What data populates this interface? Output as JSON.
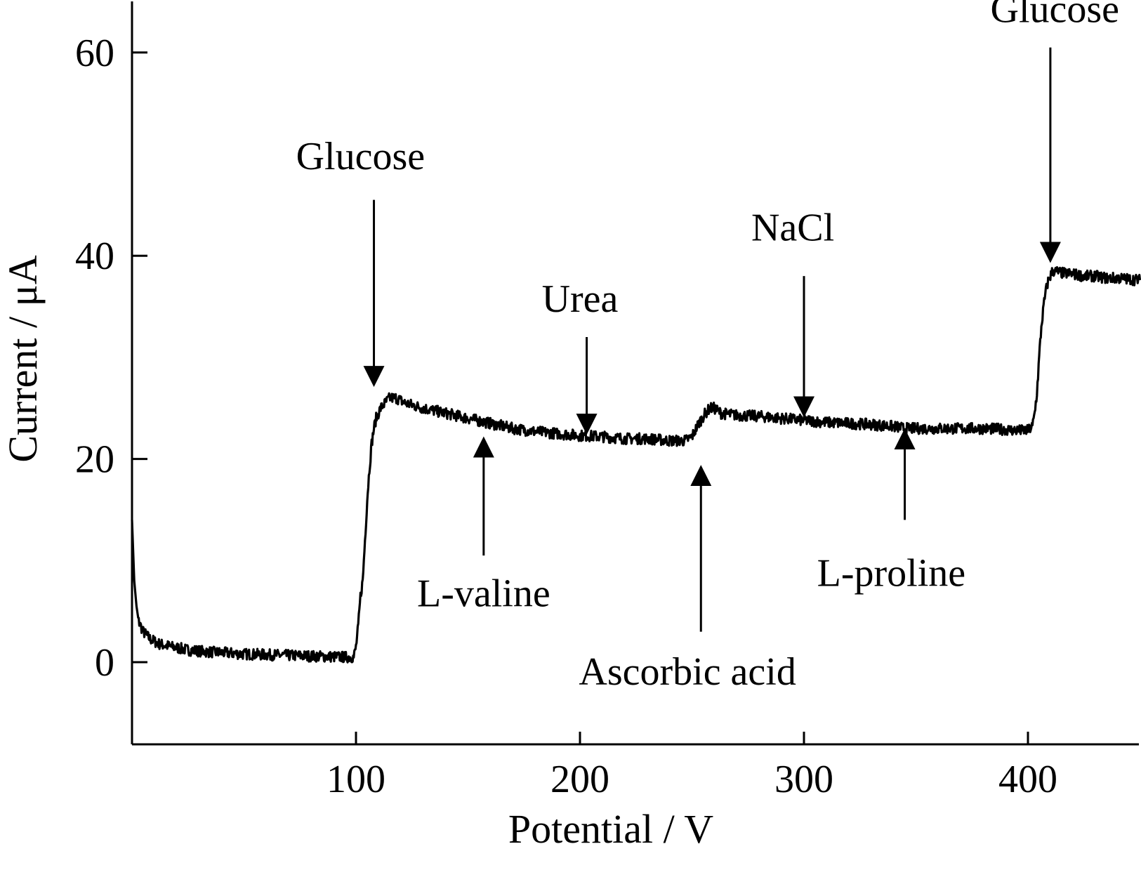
{
  "chart_data": {
    "type": "line",
    "title": "",
    "xlabel": "Potential / V",
    "ylabel": "Current / μA",
    "xlim": [
      0,
      450
    ],
    "ylim": [
      -8,
      65
    ],
    "xticks": [
      100,
      200,
      300,
      400
    ],
    "yticks": [
      0,
      20,
      40,
      60
    ],
    "xtick_labels": [
      "100",
      "200",
      "300",
      "400"
    ],
    "ytick_labels": [
      "0",
      "20",
      "40",
      "60"
    ],
    "grid": false,
    "legend": "none",
    "line_color": "#000000",
    "series": [
      {
        "x": [
          0,
          1,
          2,
          3,
          5,
          8,
          12,
          18,
          25,
          35,
          50,
          65,
          80,
          95,
          99,
          100,
          101,
          102,
          103,
          104,
          105,
          106,
          107,
          108,
          109,
          110,
          111,
          113,
          115,
          118,
          122,
          130,
          140,
          150,
          160,
          170,
          180,
          190,
          200,
          210,
          220,
          230,
          240,
          247,
          250,
          253,
          256,
          258,
          260,
          263,
          270,
          280,
          290,
          300,
          310,
          320,
          330,
          340,
          345,
          350,
          360,
          370,
          380,
          390,
          395,
          400,
          402,
          403,
          404,
          405,
          406,
          407,
          408,
          409,
          410,
          411,
          412,
          415,
          420,
          425,
          430,
          435,
          440,
          445,
          450
        ],
        "y": [
          14,
          8,
          5.5,
          4,
          3,
          2.3,
          1.8,
          1.5,
          1.2,
          1.0,
          0.8,
          0.7,
          0.6,
          0.5,
          0.5,
          1.5,
          3.5,
          6.5,
          8,
          12,
          16,
          19,
          21.5,
          23,
          24,
          24.5,
          25,
          25.5,
          26,
          26,
          25.5,
          25,
          24.5,
          24,
          23.5,
          23,
          22.7,
          22.5,
          22.3,
          22.2,
          22,
          22,
          21.8,
          21.8,
          22.2,
          23.5,
          24.5,
          25,
          25,
          24.5,
          24.3,
          24.2,
          24,
          23.8,
          23.6,
          23.5,
          23.4,
          23.2,
          23,
          23,
          23,
          23,
          23,
          22.9,
          22.8,
          22.8,
          23.2,
          24.5,
          26.5,
          30,
          33,
          35,
          36.5,
          37.5,
          38,
          38.5,
          38.5,
          38.3,
          38.2,
          38,
          38,
          37.8,
          37.8,
          37.7,
          37.6
        ]
      }
    ],
    "annotations": [
      {
        "label": "Glucose",
        "direction": "down",
        "x": 108,
        "arrow_y_start": 45.5,
        "arrow_y_end": 27.5,
        "label_y": 48.5,
        "label_x": 102
      },
      {
        "label": "L-valine",
        "direction": "up",
        "x": 157,
        "arrow_y_start": 10.5,
        "arrow_y_end": 21.8,
        "label_y": 5.5,
        "label_x": 157
      },
      {
        "label": "Urea",
        "direction": "down",
        "x": 203,
        "arrow_y_start": 32,
        "arrow_y_end": 22.8,
        "label_y": 34.5,
        "label_x": 200
      },
      {
        "label": "Ascorbic acid",
        "direction": "up",
        "x": 254,
        "arrow_y_start": 3,
        "arrow_y_end": 19,
        "label_y": -2.2,
        "label_x": 248
      },
      {
        "label": "NaCl",
        "direction": "down",
        "x": 300,
        "arrow_y_start": 38,
        "arrow_y_end": 24.5,
        "label_y": 41.5,
        "label_x": 295
      },
      {
        "label": "L-proline",
        "direction": "up",
        "x": 345,
        "arrow_y_start": 14,
        "arrow_y_end": 22.6,
        "label_y": 7.5,
        "label_x": 339
      },
      {
        "label": "Glucose",
        "direction": "down",
        "x": 410,
        "arrow_y_start": 60.5,
        "arrow_y_end": 39.7,
        "label_y": 63,
        "label_x": 412
      }
    ]
  }
}
